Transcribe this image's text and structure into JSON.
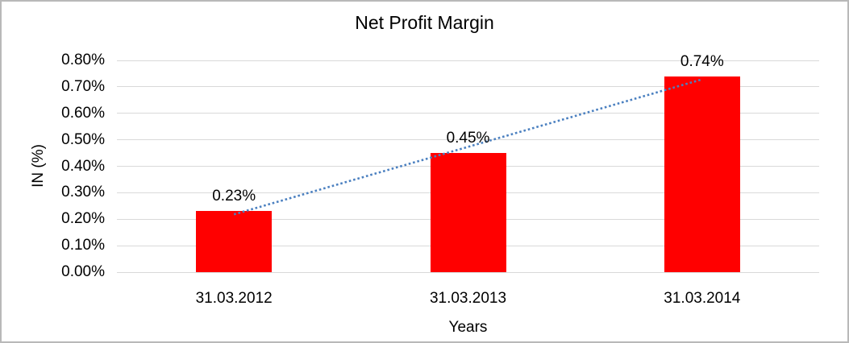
{
  "chart_data": {
    "type": "bar",
    "title": "Net Profit Margin",
    "categories": [
      "31.03.2012",
      "31.03.2013",
      "31.03.2014"
    ],
    "values": [
      0.23,
      0.45,
      0.74
    ],
    "data_labels": [
      "0.23%",
      "0.45%",
      "0.74%"
    ],
    "xlabel": "Years",
    "ylabel": "IN (%)",
    "ylim": [
      0,
      0.8
    ],
    "y_tick_step": 0.1,
    "y_tick_labels": [
      "0.00%",
      "0.10%",
      "0.20%",
      "0.30%",
      "0.40%",
      "0.50%",
      "0.60%",
      "0.70%",
      "0.80%"
    ],
    "grid": "horizontal",
    "legend": "none",
    "bar_color": "#ff0000",
    "gridline_color": "#d9d9d9",
    "text_color": "#000000",
    "trendline": {
      "type": "linear",
      "style": "dotted",
      "color": "#4b80c0"
    }
  }
}
